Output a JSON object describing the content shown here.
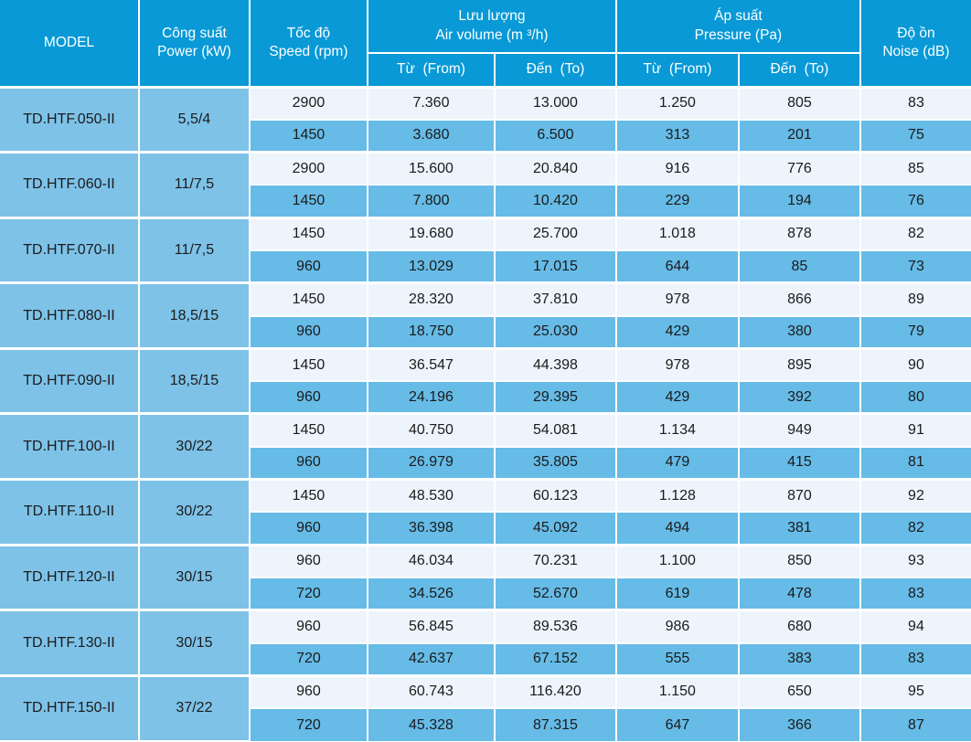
{
  "colors": {
    "header_bg": "#0899d6",
    "group_cell_bg": "#7ec2e8",
    "row_light_bg": "#edf4fb",
    "row_dark_bg": "#66bbe7",
    "grid_line": "#ffffff",
    "header_text": "#ffffff",
    "body_text": "#1b1b1b"
  },
  "table": {
    "header": {
      "model": "MODEL",
      "power": {
        "vi": "Công suất",
        "en": "Power (kW)"
      },
      "speed": {
        "vi": "Tốc độ",
        "en": "Speed (rpm)"
      },
      "air_volume": {
        "vi": "Lưu lượng",
        "en": "Air volume (m ³/h)"
      },
      "pressure": {
        "vi": "Áp suất",
        "en": "Pressure (Pa)"
      },
      "noise": {
        "vi": "Độ ồn",
        "en": "Noise (dB)"
      },
      "from_label": "Từ  (From)",
      "to_label": "Đến  (To)"
    },
    "groups": [
      {
        "model": "TD.HTF.050-II",
        "power": "5,5/4",
        "rows": [
          {
            "speed": "2900",
            "air_from": "7.360",
            "air_to": "13.000",
            "p_from": "1.250",
            "p_to": "805",
            "noise": "83"
          },
          {
            "speed": "1450",
            "air_from": "3.680",
            "air_to": "6.500",
            "p_from": "313",
            "p_to": "201",
            "noise": "75"
          }
        ]
      },
      {
        "model": "TD.HTF.060-II",
        "power": "11/7,5",
        "rows": [
          {
            "speed": "2900",
            "air_from": "15.600",
            "air_to": "20.840",
            "p_from": "916",
            "p_to": "776",
            "noise": "85"
          },
          {
            "speed": "1450",
            "air_from": "7.800",
            "air_to": "10.420",
            "p_from": "229",
            "p_to": "194",
            "noise": "76"
          }
        ]
      },
      {
        "model": "TD.HTF.070-II",
        "power": "11/7,5",
        "rows": [
          {
            "speed": "1450",
            "air_from": "19.680",
            "air_to": "25.700",
            "p_from": "1.018",
            "p_to": "878",
            "noise": "82"
          },
          {
            "speed": "960",
            "air_from": "13.029",
            "air_to": "17.015",
            "p_from": "644",
            "p_to": "85",
            "noise": "73"
          }
        ]
      },
      {
        "model": "TD.HTF.080-II",
        "power": "18,5/15",
        "rows": [
          {
            "speed": "1450",
            "air_from": "28.320",
            "air_to": "37.810",
            "p_from": "978",
            "p_to": "866",
            "noise": "89"
          },
          {
            "speed": "960",
            "air_from": "18.750",
            "air_to": "25.030",
            "p_from": "429",
            "p_to": "380",
            "noise": "79"
          }
        ]
      },
      {
        "model": "TD.HTF.090-II",
        "power": "18,5/15",
        "rows": [
          {
            "speed": "1450",
            "air_from": "36.547",
            "air_to": "44.398",
            "p_from": "978",
            "p_to": "895",
            "noise": "90"
          },
          {
            "speed": "960",
            "air_from": "24.196",
            "air_to": "29.395",
            "p_from": "429",
            "p_to": "392",
            "noise": "80"
          }
        ]
      },
      {
        "model": "TD.HTF.100-II",
        "power": "30/22",
        "rows": [
          {
            "speed": "1450",
            "air_from": "40.750",
            "air_to": "54.081",
            "p_from": "1.134",
            "p_to": "949",
            "noise": "91"
          },
          {
            "speed": "960",
            "air_from": "26.979",
            "air_to": "35.805",
            "p_from": "479",
            "p_to": "415",
            "noise": "81"
          }
        ]
      },
      {
        "model": "TD.HTF.110-II",
        "power": "30/22",
        "rows": [
          {
            "speed": "1450",
            "air_from": "48.530",
            "air_to": "60.123",
            "p_from": "1.128",
            "p_to": "870",
            "noise": "92"
          },
          {
            "speed": "960",
            "air_from": "36.398",
            "air_to": "45.092",
            "p_from": "494",
            "p_to": "381",
            "noise": "82"
          }
        ]
      },
      {
        "model": "TD.HTF.120-II",
        "power": "30/15",
        "rows": [
          {
            "speed": "960",
            "air_from": "46.034",
            "air_to": "70.231",
            "p_from": "1.100",
            "p_to": "850",
            "noise": "93"
          },
          {
            "speed": "720",
            "air_from": "34.526",
            "air_to": "52.670",
            "p_from": "619",
            "p_to": "478",
            "noise": "83"
          }
        ]
      },
      {
        "model": "TD.HTF.130-II",
        "power": "30/15",
        "rows": [
          {
            "speed": "960",
            "air_from": "56.845",
            "air_to": "89.536",
            "p_from": "986",
            "p_to": "680",
            "noise": "94"
          },
          {
            "speed": "720",
            "air_from": "42.637",
            "air_to": "67.152",
            "p_from": "555",
            "p_to": "383",
            "noise": "83"
          }
        ]
      },
      {
        "model": "TD.HTF.150-II",
        "power": "37/22",
        "rows": [
          {
            "speed": "960",
            "air_from": "60.743",
            "air_to": "116.420",
            "p_from": "1.150",
            "p_to": "650",
            "noise": "95"
          },
          {
            "speed": "720",
            "air_from": "45.328",
            "air_to": "87.315",
            "p_from": "647",
            "p_to": "366",
            "noise": "87"
          }
        ]
      }
    ]
  }
}
